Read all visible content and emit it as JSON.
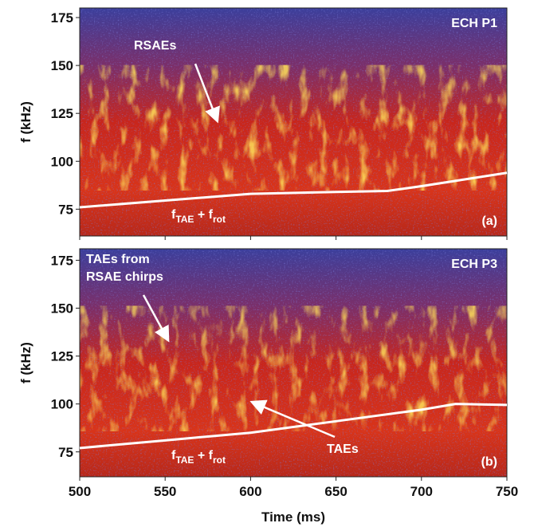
{
  "chart_data": [
    {
      "type": "line",
      "ylabel": "f (kHz)",
      "xlim": [
        500,
        750
      ],
      "xticks": [
        500,
        550,
        600,
        650,
        700,
        750
      ],
      "ylim": [
        61,
        180
      ],
      "yticks": [
        75,
        100,
        125,
        150,
        175
      ],
      "series": [
        {
          "color": "#ffffff",
          "x": [
            500,
            550,
            600,
            650,
            680,
            700,
            750
          ],
          "values": [
            76,
            79.5,
            83,
            84,
            84.5,
            87,
            94
          ]
        }
      ],
      "tag": "ECH P1",
      "panel_label": "(a)",
      "annotations": [
        "RSAEs"
      ],
      "curve_label": [
        "f",
        "TAE",
        " + f",
        "rot"
      ]
    },
    {
      "type": "line",
      "ylabel": "f (kHz)",
      "xlabel": "Time (ms)",
      "xlim": [
        500,
        750
      ],
      "xticks": [
        500,
        550,
        600,
        650,
        700,
        750
      ],
      "ylim": [
        62,
        181
      ],
      "yticks": [
        75,
        100,
        125,
        150,
        175
      ],
      "series": [
        {
          "color": "#ffffff",
          "x": [
            500,
            550,
            600,
            650,
            700,
            720,
            750
          ],
          "values": [
            77,
            81,
            85,
            91,
            97,
            100,
            99.5
          ]
        }
      ],
      "tag": "ECH P3",
      "panel_label": "(b)",
      "annotations": [
        "TAEs from",
        "RSAE chirps",
        "TAEs"
      ],
      "curve_label": [
        "f",
        "TAE",
        " + f",
        "rot"
      ]
    }
  ]
}
